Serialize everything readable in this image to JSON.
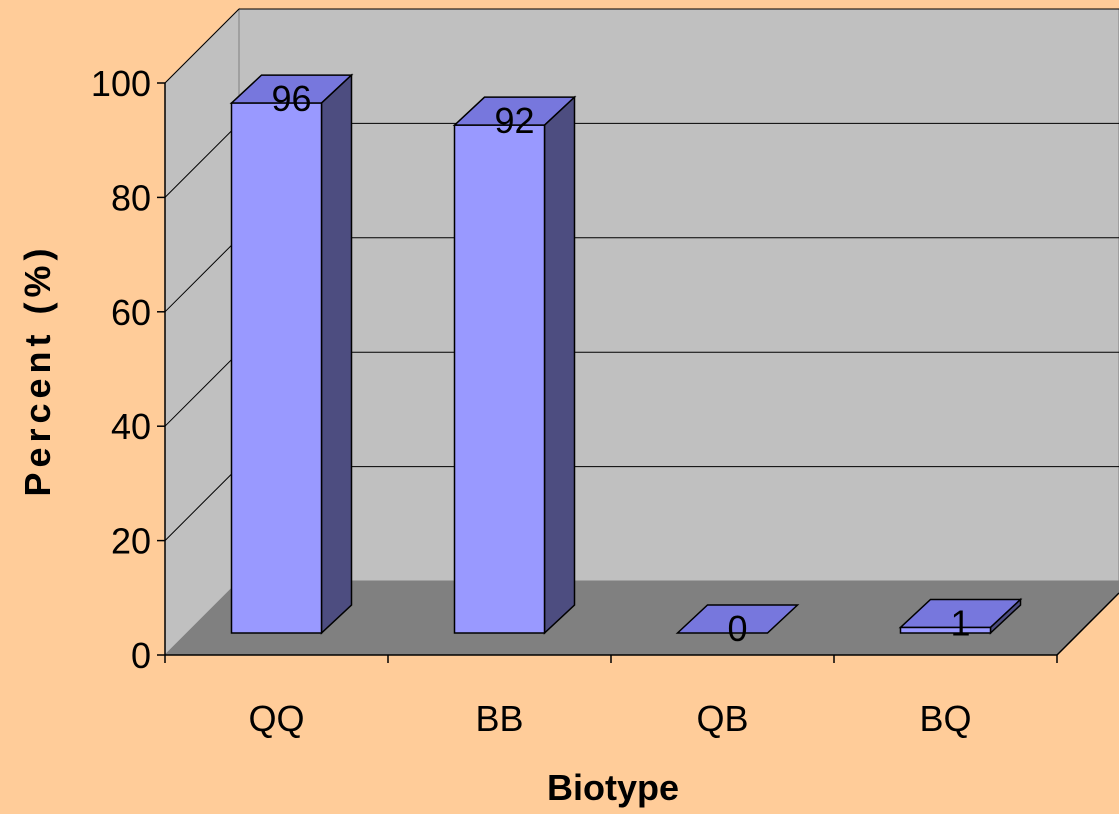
{
  "chart_data": {
    "type": "bar",
    "categories": [
      "QQ",
      "BB",
      "QB",
      "BQ"
    ],
    "values": [
      96,
      92,
      0,
      1
    ],
    "data_labels": [
      "96",
      "92",
      "0",
      "1"
    ],
    "xlabel": "Biotype",
    "ylabel": "Percent (%)",
    "ylim": [
      0,
      100
    ],
    "y_ticks": [
      "0",
      "20",
      "40",
      "60",
      "80",
      "100"
    ],
    "grid": true,
    "style": "3d-column",
    "colors": {
      "background": "#ffcc99",
      "back_wall": "#c0c0c0",
      "floor": "#808080",
      "bar_front": "#9999ff",
      "bar_top": "#7777dd",
      "bar_side": "#4d4d80"
    }
  }
}
